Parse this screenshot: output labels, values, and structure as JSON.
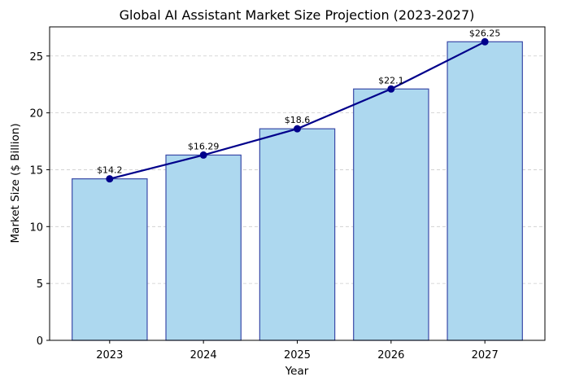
{
  "chart_data": {
    "type": "bar",
    "title": "Global AI Assistant Market Size Projection (2023-2027)",
    "xlabel": "Year",
    "ylabel": "Market Size ($ Billion)",
    "categories": [
      "2023",
      "2024",
      "2025",
      "2026",
      "2027"
    ],
    "values": [
      14.2,
      16.29,
      18.6,
      22.1,
      26.25
    ],
    "data_labels": [
      "$14.2",
      "$16.29",
      "$18.6",
      "$22.1",
      "$26.25"
    ],
    "overlay_line": true,
    "ylim": [
      0,
      27.56
    ],
    "yticks": [
      0,
      5,
      10,
      15,
      20,
      25
    ],
    "grid": "y-dashed",
    "colors": {
      "bar_fill": "#add8ef",
      "bar_edge": "#3a4aa8",
      "line": "#00008b",
      "grid": "#cccccc"
    }
  }
}
